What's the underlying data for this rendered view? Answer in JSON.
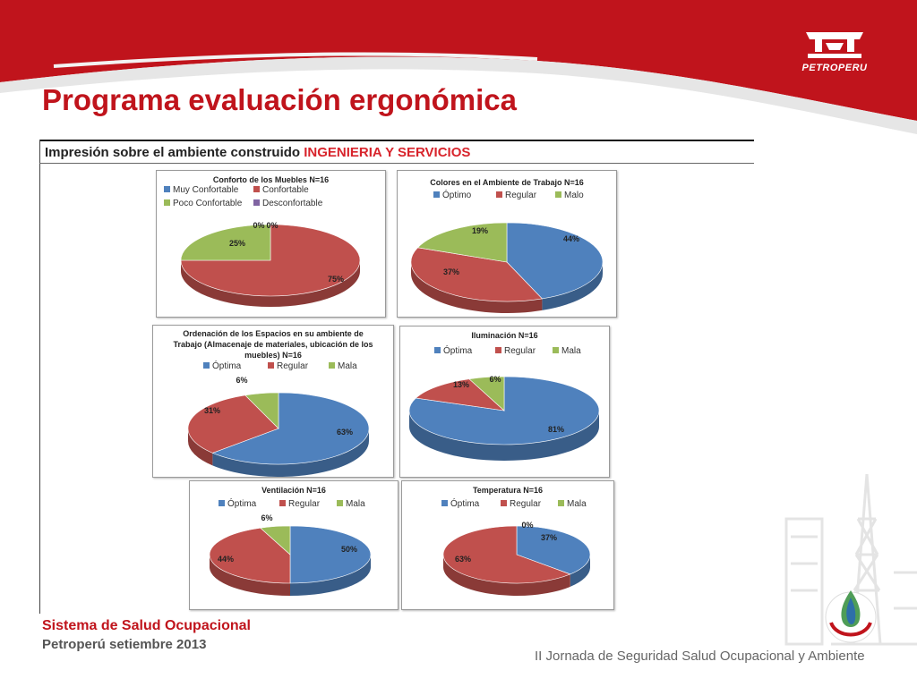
{
  "slide": {
    "title": "Programa evaluación ergonómica",
    "logo_text": "PETROPERU",
    "panel_caption": "Impresión sobre el  ambiente construido",
    "panel_caption_accent": "INGENIERIA Y SERVICIOS",
    "footer_title": "Sistema de Salud Ocupacional",
    "footer_subtitle": "Petroperú  setiembre 2013",
    "footer_event": "II Jornada de Seguridad Salud Ocupacional y Ambiente",
    "colors": {
      "red": "#c0141c",
      "blue": "#4f81bd",
      "mid_red": "#c0504d",
      "green": "#9bbb59",
      "purple": "#8064a2"
    }
  },
  "chart_data": [
    {
      "type": "pie",
      "title": [
        "Conforto de los Muebles  N=16"
      ],
      "legend": [
        "Muy Confortable",
        "Confortable",
        "Poco Confortable",
        "Desconfortable"
      ],
      "values": [
        0,
        75,
        25,
        0
      ],
      "labels": [
        "0%",
        "75%",
        "25%",
        "0%"
      ]
    },
    {
      "type": "pie",
      "title": [
        "Colores en el Ambiente de Trabajo  N=16"
      ],
      "legend": [
        "Óptimo",
        "Regular",
        "Malo"
      ],
      "values": [
        44,
        37,
        19
      ],
      "labels": [
        "44%",
        "37%",
        "19%"
      ]
    },
    {
      "type": "pie",
      "title": [
        "Ordenación de los Espacios en su ambiente de",
        "Trabajo (Almacenaje de materiales, ubicación de los",
        "muebles) N=16"
      ],
      "legend": [
        "Óptima",
        "Regular",
        "Mala"
      ],
      "values": [
        63,
        31,
        6
      ],
      "labels": [
        "63%",
        "31%",
        "6%"
      ]
    },
    {
      "type": "pie",
      "title": [
        "Iluminación  N=16"
      ],
      "legend": [
        "Óptima",
        "Regular",
        "Mala"
      ],
      "values": [
        81,
        13,
        6
      ],
      "labels": [
        "81%",
        "13%",
        "6%"
      ]
    },
    {
      "type": "pie",
      "title": [
        "Ventilación  N=16"
      ],
      "legend": [
        "Óptima",
        "Regular",
        "Mala"
      ],
      "values": [
        50,
        44,
        6
      ],
      "labels": [
        "50%",
        "44%",
        "6%"
      ]
    },
    {
      "type": "pie",
      "title": [
        "Temperatura  N=16"
      ],
      "legend": [
        "Óptima",
        "Regular",
        "Mala"
      ],
      "values": [
        37,
        63,
        0
      ],
      "labels": [
        "37%",
        "63%",
        "0%"
      ]
    }
  ]
}
